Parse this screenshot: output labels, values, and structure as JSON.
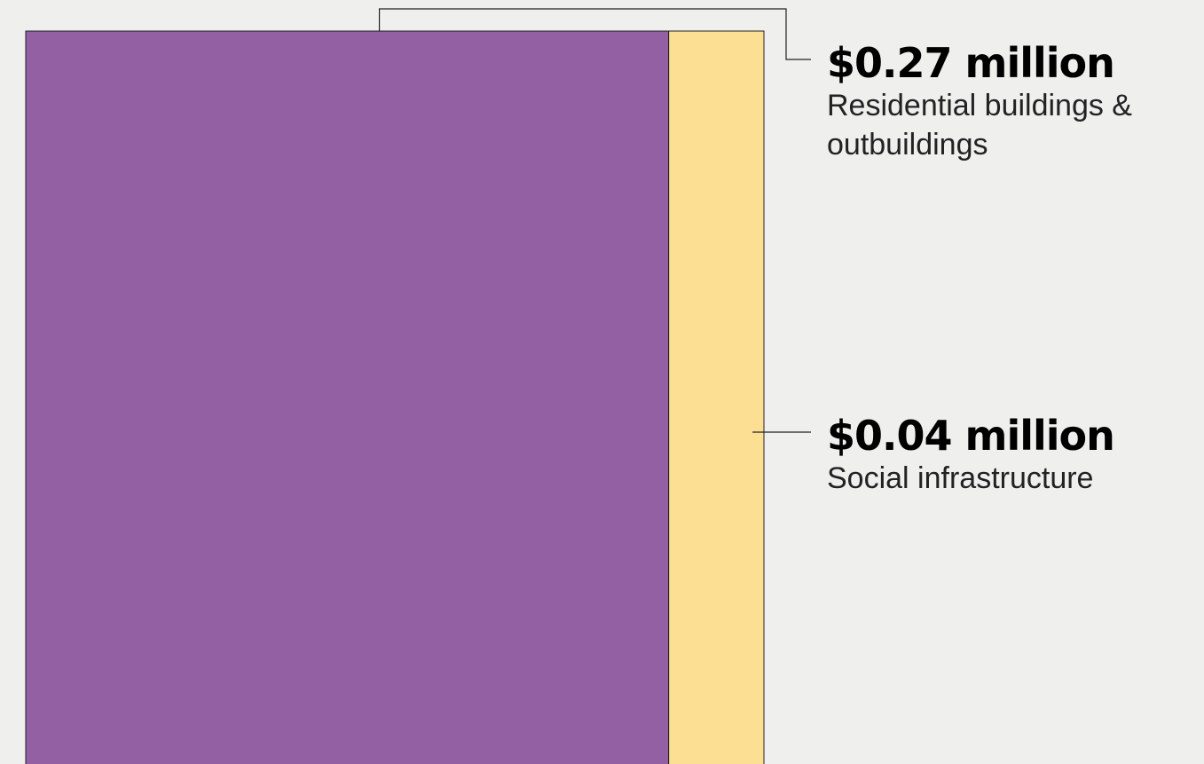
{
  "chart_data": {
    "type": "treemap",
    "categories": [
      "Residential buildings & outbuildings",
      "Social infrastructure"
    ],
    "values": [
      0.27,
      0.04
    ],
    "value_labels": [
      "$0.27 million",
      "$0.04 million"
    ],
    "colors": [
      "#9360a3",
      "#fddf94"
    ]
  }
}
